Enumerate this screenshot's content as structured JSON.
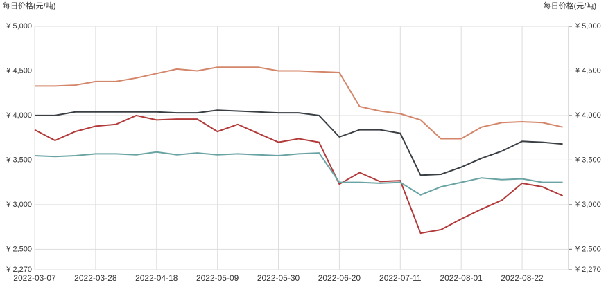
{
  "chart_data": {
    "type": "line",
    "y_label": "每日价格(元/吨)",
    "y2_label": "每日价格(元/吨)",
    "x": [
      "2022-03-07",
      "2022-03-14",
      "2022-03-21",
      "2022-03-28",
      "2022-04-04",
      "2022-04-11",
      "2022-04-18",
      "2022-04-25",
      "2022-05-02",
      "2022-05-09",
      "2022-05-16",
      "2022-05-23",
      "2022-05-30",
      "2022-06-06",
      "2022-06-13",
      "2022-06-20",
      "2022-06-27",
      "2022-07-04",
      "2022-07-11",
      "2022-07-18",
      "2022-07-25",
      "2022-08-01",
      "2022-08-08",
      "2022-08-15",
      "2022-08-22",
      "2022-08-29",
      "2022-09-05"
    ],
    "xlim": [
      "2022-03-07",
      "2022-09-07"
    ],
    "xticks": [
      "2022-03-07",
      "2022-03-28",
      "2022-04-18",
      "2022-05-09",
      "2022-05-30",
      "2022-06-20",
      "2022-07-11",
      "2022-08-01",
      "2022-08-22"
    ],
    "ylim": [
      2270,
      5000
    ],
    "yticks": [
      {
        "value": 2270,
        "label": "¥ 2,270"
      },
      {
        "value": 2500,
        "label": "¥ 2,500"
      },
      {
        "value": 3000,
        "label": "¥ 3,000"
      },
      {
        "value": 3500,
        "label": "¥ 3,500"
      },
      {
        "value": 4000,
        "label": "¥ 4,000"
      },
      {
        "value": 4500,
        "label": "¥ 4,500"
      },
      {
        "value": 5000,
        "label": "¥ 5,000"
      }
    ],
    "y2lim": [
      2270,
      5000
    ],
    "y2ticks": [
      {
        "value": 2270,
        "label": "¥ 2,270"
      },
      {
        "value": 2500,
        "label": "¥ 2,500"
      },
      {
        "value": 3000,
        "label": "¥ 3,000"
      },
      {
        "value": 3500,
        "label": "¥ 3,500"
      },
      {
        "value": 4000,
        "label": "¥ 4,000"
      },
      {
        "value": 4500,
        "label": "¥ 4,500"
      },
      {
        "value": 5000,
        "label": "¥ 5,000"
      }
    ],
    "grid": true,
    "series": [
      {
        "color": "#d4866a",
        "values": [
          4330,
          4330,
          4340,
          4380,
          4380,
          4420,
          4470,
          4520,
          4500,
          4540,
          4540,
          4540,
          4500,
          4500,
          4490,
          4480,
          4100,
          4050,
          4020,
          3950,
          3740,
          3740,
          3870,
          3920,
          3930,
          3920,
          3870
        ]
      },
      {
        "color": "#3a3f44",
        "values": [
          4000,
          4000,
          4040,
          4040,
          4040,
          4040,
          4040,
          4030,
          4030,
          4060,
          4050,
          4040,
          4030,
          4030,
          4000,
          3760,
          3840,
          3840,
          3800,
          3330,
          3340,
          3420,
          3520,
          3600,
          3710,
          3700,
          3680
        ]
      },
      {
        "color": "#b23a3a",
        "values": [
          3840,
          3720,
          3820,
          3880,
          3900,
          4000,
          3950,
          3960,
          3960,
          3820,
          3900,
          3800,
          3700,
          3740,
          3700,
          3230,
          3360,
          3260,
          3270,
          2680,
          2720,
          2840,
          2950,
          3050,
          3240,
          3200,
          3100
        ]
      },
      {
        "color": "#6aa3a3",
        "values": [
          3550,
          3540,
          3550,
          3570,
          3570,
          3560,
          3590,
          3560,
          3580,
          3560,
          3570,
          3560,
          3550,
          3570,
          3580,
          3250,
          3250,
          3240,
          3250,
          3110,
          3200,
          3250,
          3300,
          3280,
          3290,
          3250,
          3250
        ]
      }
    ]
  }
}
